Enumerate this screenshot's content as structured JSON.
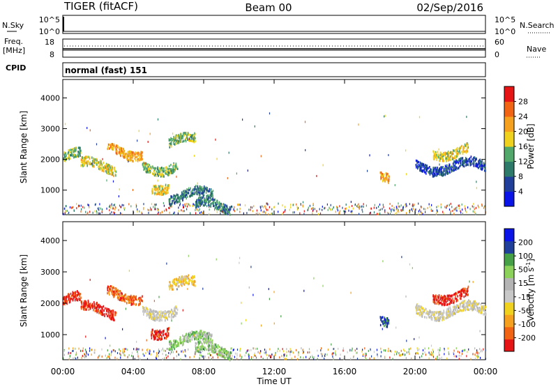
{
  "header": {
    "radar": "TIGER (fitACF)",
    "beam": "Beam 00",
    "date": "02/Sep/2016"
  },
  "strip_nsky": {
    "label": "N.Sky",
    "ticks_left": [
      "10^5",
      "10^0"
    ],
    "ticks_right": [
      "10^5",
      "10^0"
    ],
    "right_label": "N.Search"
  },
  "strip_freq": {
    "label_line1": "Freq.",
    "label_line2": "[MHz]",
    "ticks_left": [
      "18",
      "8"
    ],
    "ticks_right": [
      "60",
      "0"
    ],
    "right_label": "Nave"
  },
  "cpid": {
    "label": "CPID",
    "mode": "normal (fast) 151"
  },
  "colors": {
    "power_scale": [
      "#0a14e6",
      "#1f3f9a",
      "#2e7a6a",
      "#52a86a",
      "#f0d21e",
      "#f5a01e",
      "#f06414",
      "#e61414"
    ],
    "velocity_scale": [
      "#e61414",
      "#f06414",
      "#f5a01e",
      "#f0d21e",
      "#c8c8c8",
      "#b4b4b4",
      "#8cd25a",
      "#46a046",
      "#1f3f9a",
      "#0a14e6"
    ]
  },
  "chart_data": [
    {
      "type": "heatmap",
      "ylabel": "Slant Range [km]",
      "y_ticks": [
        1000,
        2000,
        3000,
        4000
      ],
      "ylim": [
        200,
        4600
      ],
      "x_ticks": [
        "00:00",
        "04:00",
        "08:00",
        "12:00",
        "16:00",
        "20:00",
        "00:00"
      ],
      "xlim_hours": [
        0,
        24
      ],
      "colorbar": {
        "label": "Power [dB]",
        "ticks": [
          "4",
          "8",
          "12",
          "16",
          "20",
          "24",
          "28"
        ]
      },
      "echo_regions": [
        {
          "t_start": 0.0,
          "t_end": 1.0,
          "r_center": 2100,
          "level": 3
        },
        {
          "t_start": 1.0,
          "t_end": 3.0,
          "r_center": 1800,
          "level": 4
        },
        {
          "t_start": 2.5,
          "t_end": 4.5,
          "r_center": 2300,
          "level": 5
        },
        {
          "t_start": 4.5,
          "t_end": 6.5,
          "r_center": 1800,
          "level": 3
        },
        {
          "t_start": 5.0,
          "t_end": 6.0,
          "r_center": 1200,
          "level": 4
        },
        {
          "t_start": 6.0,
          "t_end": 8.5,
          "r_center": 850,
          "level": 2
        },
        {
          "t_start": 6.0,
          "t_end": 7.5,
          "r_center": 2600,
          "level": 3
        },
        {
          "t_start": 7.5,
          "t_end": 9.5,
          "r_center": 500,
          "level": 2
        },
        {
          "t_start": 18.0,
          "t_end": 18.5,
          "r_center": 1300,
          "level": 5
        },
        {
          "t_start": 20.0,
          "t_end": 24.0,
          "r_center": 1800,
          "level": 1
        },
        {
          "t_start": 21.0,
          "t_end": 23.0,
          "r_center": 2300,
          "level": 4
        }
      ]
    },
    {
      "type": "heatmap",
      "ylabel": "Slant Range [km]",
      "y_ticks": [
        1000,
        2000,
        3000,
        4000
      ],
      "ylim": [
        200,
        4600
      ],
      "x_ticks": [
        "00:00",
        "04:00",
        "08:00",
        "12:00",
        "16:00",
        "20:00",
        "00:00"
      ],
      "xlabel": "Time UT",
      "xlim_hours": [
        0,
        24
      ],
      "colorbar": {
        "label": "Velocity [m s",
        "label_sup": "-1",
        "label_end": "]",
        "ticks": [
          "200",
          "100",
          "50",
          "15",
          "-15",
          "-50",
          "-100",
          "-200"
        ]
      },
      "echo_regions": [
        {
          "t_start": 0.0,
          "t_end": 1.0,
          "r_center": 2100,
          "level": 0
        },
        {
          "t_start": 1.0,
          "t_end": 3.0,
          "r_center": 1800,
          "level": 0
        },
        {
          "t_start": 2.5,
          "t_end": 4.5,
          "r_center": 2300,
          "level": 1
        },
        {
          "t_start": 4.5,
          "t_end": 6.5,
          "r_center": 1800,
          "level": 4
        },
        {
          "t_start": 5.0,
          "t_end": 6.0,
          "r_center": 1200,
          "level": 0
        },
        {
          "t_start": 6.0,
          "t_end": 8.5,
          "r_center": 850,
          "level": 6
        },
        {
          "t_start": 6.0,
          "t_end": 7.5,
          "r_center": 2600,
          "level": 3
        },
        {
          "t_start": 7.5,
          "t_end": 9.5,
          "r_center": 500,
          "level": 6
        },
        {
          "t_start": 18.0,
          "t_end": 18.5,
          "r_center": 1300,
          "level": 8
        },
        {
          "t_start": 20.0,
          "t_end": 24.0,
          "r_center": 1800,
          "level": 4
        },
        {
          "t_start": 21.0,
          "t_end": 23.0,
          "r_center": 2300,
          "level": 0
        }
      ]
    }
  ]
}
